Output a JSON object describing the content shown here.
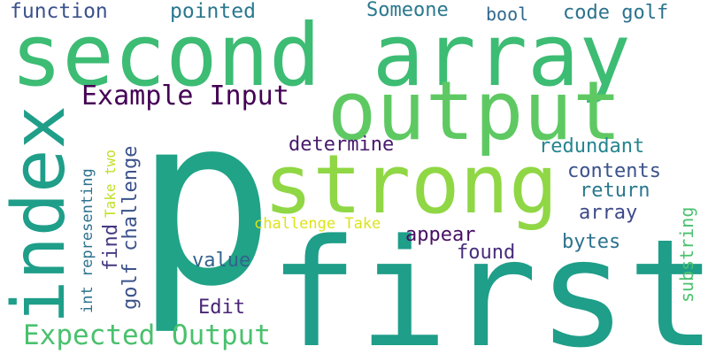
{
  "words": [
    {
      "text": "p",
      "color": "#20a386",
      "vertical": false
    },
    {
      "text": "first",
      "color": "#1f9e89",
      "vertical": false
    },
    {
      "text": "second array",
      "color": "#3dbc74",
      "vertical": false
    },
    {
      "text": "output",
      "color": "#5ec962",
      "vertical": false
    },
    {
      "text": "strong",
      "color": "#8fd744",
      "vertical": false
    },
    {
      "text": "index",
      "color": "#1f9e89",
      "vertical": true
    },
    {
      "text": "Example Input",
      "color": "#440154",
      "vertical": false
    },
    {
      "text": "Expected Output",
      "color": "#4ac16d",
      "vertical": false
    },
    {
      "text": "function",
      "color": "#3b528b",
      "vertical": false
    },
    {
      "text": "pointed",
      "color": "#2a788e",
      "vertical": false
    },
    {
      "text": "Someone",
      "color": "#2a788e",
      "vertical": false
    },
    {
      "text": "bool",
      "color": "#31688e",
      "vertical": false
    },
    {
      "text": "code golf",
      "color": "#2c728e",
      "vertical": false
    },
    {
      "text": "determine",
      "color": "#481a6c",
      "vertical": false
    },
    {
      "text": "redundant",
      "color": "#25858e",
      "vertical": false
    },
    {
      "text": "contents",
      "color": "#3b528b",
      "vertical": false
    },
    {
      "text": "return",
      "color": "#2a788e",
      "vertical": false
    },
    {
      "text": "array",
      "color": "#3e4989",
      "vertical": false
    },
    {
      "text": "challenge Take",
      "color": "#dde318",
      "vertical": false
    },
    {
      "text": "appear",
      "color": "#471063",
      "vertical": false
    },
    {
      "text": "found",
      "color": "#472d7b",
      "vertical": false
    },
    {
      "text": "bytes",
      "color": "#2c728e",
      "vertical": false
    },
    {
      "text": "value",
      "color": "#33638d",
      "vertical": false
    },
    {
      "text": "Edit",
      "color": "#482475",
      "vertical": false
    },
    {
      "text": "golf challenge",
      "color": "#3b528b",
      "vertical": true
    },
    {
      "text": "find",
      "color": "#443983",
      "vertical": true
    },
    {
      "text": "Take two",
      "color": "#c2df23",
      "vertical": true
    },
    {
      "text": "int representing",
      "color": "#2c728e",
      "vertical": true
    },
    {
      "text": "substring",
      "color": "#4ac16d",
      "vertical": true
    }
  ]
}
